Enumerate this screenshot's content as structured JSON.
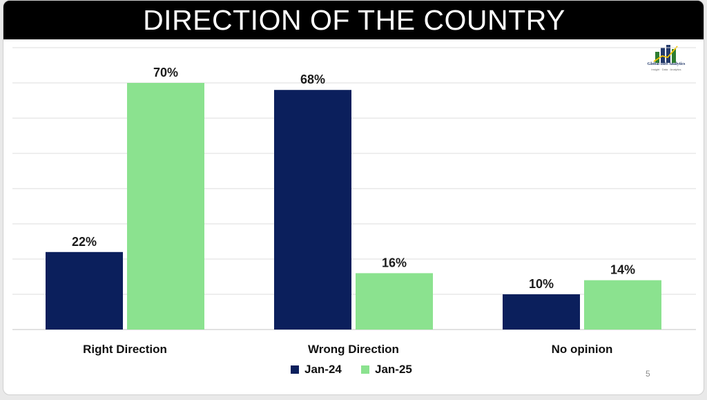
{
  "slide": {
    "page_number": "5",
    "logo": {
      "name": "Global Info Analytics",
      "tagline": "Insight · Data · Analytics",
      "colors": {
        "primary": "#243a6b",
        "accent": "#2e7d32",
        "highlight": "#f2c200"
      }
    }
  },
  "chart_data": {
    "type": "bar",
    "title": "DIRECTION OF THE COUNTRY",
    "categories": [
      "Right Direction",
      "Wrong Direction",
      "No opinion"
    ],
    "series": [
      {
        "name": "Jan-24",
        "color": "#0b1f5c",
        "values": [
          22,
          68,
          10
        ],
        "labels": [
          "22%",
          "68%",
          "10%"
        ]
      },
      {
        "name": "Jan-25",
        "color": "#8be28f",
        "values": [
          70,
          16,
          14
        ],
        "labels": [
          "70%",
          "16%",
          "14%"
        ]
      }
    ],
    "ylim": [
      0,
      80
    ],
    "grid": true,
    "legend": "bottom-center",
    "xlabel": "",
    "ylabel": ""
  }
}
